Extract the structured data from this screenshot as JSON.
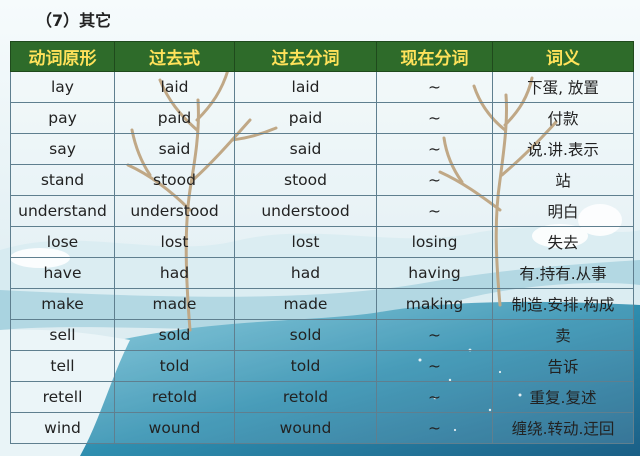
{
  "section_title": "（7）其它",
  "table": {
    "headers": [
      "动词原形",
      "过去式",
      "过去分词",
      "现在分词",
      "词义"
    ],
    "rows": [
      [
        "lay",
        "laid",
        "laid",
        "~",
        "下蛋, 放置"
      ],
      [
        "pay",
        "paid",
        "paid",
        "~",
        "付款"
      ],
      [
        "say",
        "said",
        "said",
        "~",
        "说.讲.表示"
      ],
      [
        "stand",
        "stood",
        "stood",
        "~",
        "站"
      ],
      [
        "understand",
        "understood",
        "understood",
        "~",
        "明白"
      ],
      [
        "lose",
        "lost",
        "lost",
        "losing",
        "失去"
      ],
      [
        "have",
        "had",
        "had",
        "having",
        "有.持有.从事"
      ],
      [
        "make",
        "made",
        "made",
        "making",
        "制造.安排.构成"
      ],
      [
        "sell",
        "sold",
        "sold",
        "~",
        "卖"
      ],
      [
        "tell",
        "told",
        "told",
        "~",
        "告诉"
      ],
      [
        "retell",
        "retold",
        "retold",
        "~",
        "重复.复述"
      ],
      [
        "wind",
        "wound",
        "wound",
        "~",
        "缠绕.转动.迂回"
      ]
    ]
  },
  "colors": {
    "header_bg": "#2e6b2a",
    "header_text": "#ffe25a",
    "grid_line": "#5f7f8f"
  }
}
